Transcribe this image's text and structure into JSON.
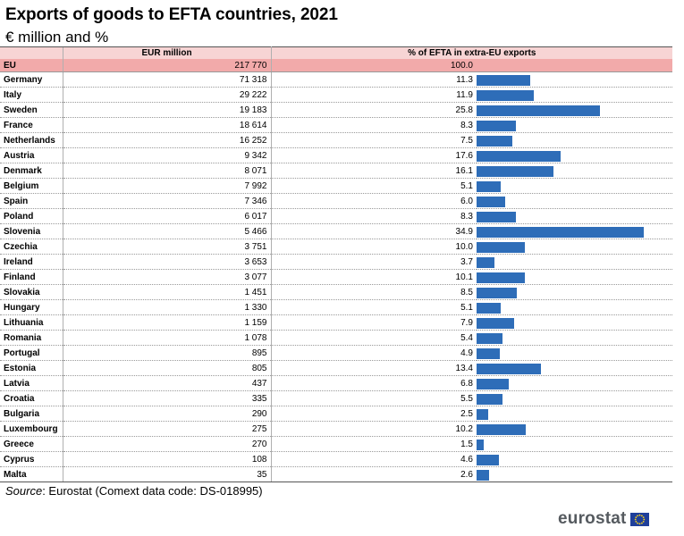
{
  "title": "Exports of goods to EFTA countries, 2021",
  "subtitle": "€ million and %",
  "headers": {
    "eur": "EUR million",
    "pct": "% of EFTA in extra-EU exports"
  },
  "eu_row": {
    "name": "EU",
    "eur": "217 770",
    "pct": "100.0"
  },
  "source": {
    "label": "Source",
    "text": ": Eurostat (Comext data code: DS-018995)"
  },
  "logo": {
    "text": "eurostat"
  },
  "colors": {
    "bar": "#2e6db8",
    "header_bg": "#f7d4d4",
    "eu_row_bg": "#f2aaaa"
  },
  "chart_data": {
    "type": "bar",
    "title": "Exports of goods to EFTA countries, 2021",
    "unit": "€ million and %",
    "orientation": "horizontal",
    "categories": [
      "Germany",
      "Italy",
      "Sweden",
      "France",
      "Netherlands",
      "Austria",
      "Denmark",
      "Belgium",
      "Spain",
      "Poland",
      "Slovenia",
      "Czechia",
      "Ireland",
      "Finland",
      "Slovakia",
      "Hungary",
      "Lithuania",
      "Romania",
      "Portugal",
      "Estonia",
      "Latvia",
      "Croatia",
      "Bulgaria",
      "Luxembourg",
      "Greece",
      "Cyprus",
      "Malta"
    ],
    "eur_labels": [
      "71 318",
      "29 222",
      "19 183",
      "18 614",
      "16 252",
      "9 342",
      "8 071",
      "7 992",
      "7 346",
      "6 017",
      "5 466",
      "3 751",
      "3 653",
      "3 077",
      "1 451",
      "1 330",
      "1 159",
      "1 078",
      "895",
      "805",
      "437",
      "335",
      "290",
      "275",
      "270",
      "108",
      "35"
    ],
    "series": [
      {
        "name": "EUR million",
        "values": [
          71318,
          29222,
          19183,
          18614,
          16252,
          9342,
          8071,
          7992,
          7346,
          6017,
          5466,
          3751,
          3653,
          3077,
          1451,
          1330,
          1159,
          1078,
          895,
          805,
          437,
          335,
          290,
          275,
          270,
          108,
          35
        ]
      },
      {
        "name": "% of EFTA in extra-EU exports",
        "values": [
          11.3,
          11.9,
          25.8,
          8.3,
          7.5,
          17.6,
          16.1,
          5.1,
          6.0,
          8.3,
          34.9,
          10.0,
          3.7,
          10.1,
          8.5,
          5.1,
          7.9,
          5.4,
          4.9,
          13.4,
          6.8,
          5.5,
          2.5,
          10.2,
          1.5,
          4.6,
          2.6
        ]
      }
    ],
    "bar_series": "% of EFTA in extra-EU exports",
    "xlim": [
      0,
      40
    ]
  }
}
